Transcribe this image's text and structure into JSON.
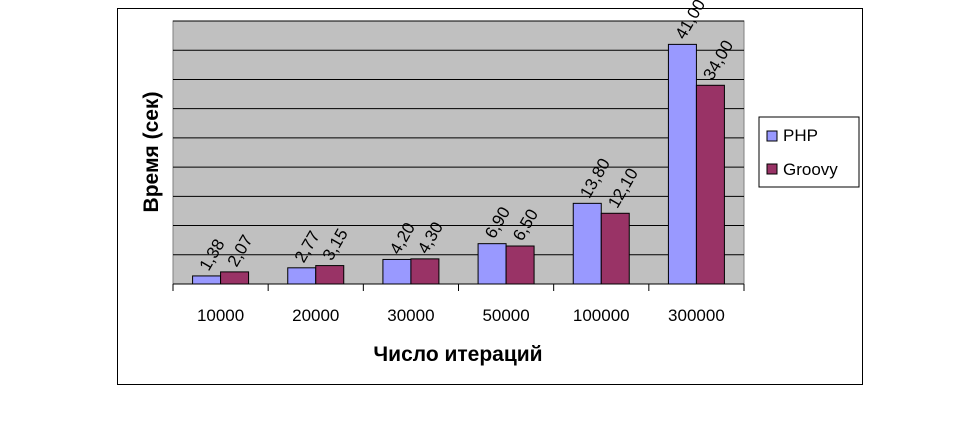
{
  "chart_data": {
    "type": "bar",
    "title": "",
    "xlabel": "Число итераций",
    "ylabel": "Время (сек)",
    "categories": [
      "10000",
      "20000",
      "30000",
      "50000",
      "100000",
      "300000"
    ],
    "series": [
      {
        "name": "PHP",
        "values": [
          1.38,
          2.77,
          4.2,
          6.9,
          13.8,
          41.0
        ],
        "labels": [
          "1,38",
          "2,77",
          "4,20",
          "6,90",
          "13,80",
          "41,00"
        ],
        "color": "#9999ff"
      },
      {
        "name": "Groovy",
        "values": [
          2.07,
          3.15,
          4.3,
          6.5,
          12.1,
          34.0
        ],
        "labels": [
          "2,07",
          "3,15",
          "4,30",
          "6,50",
          "12,10",
          "34,00"
        ],
        "color": "#993366"
      }
    ],
    "ylim": [
      0,
      45
    ],
    "y_gridline_step": 5,
    "grid": true,
    "plot_background": "#c0c0c0",
    "legend_position": "right"
  }
}
